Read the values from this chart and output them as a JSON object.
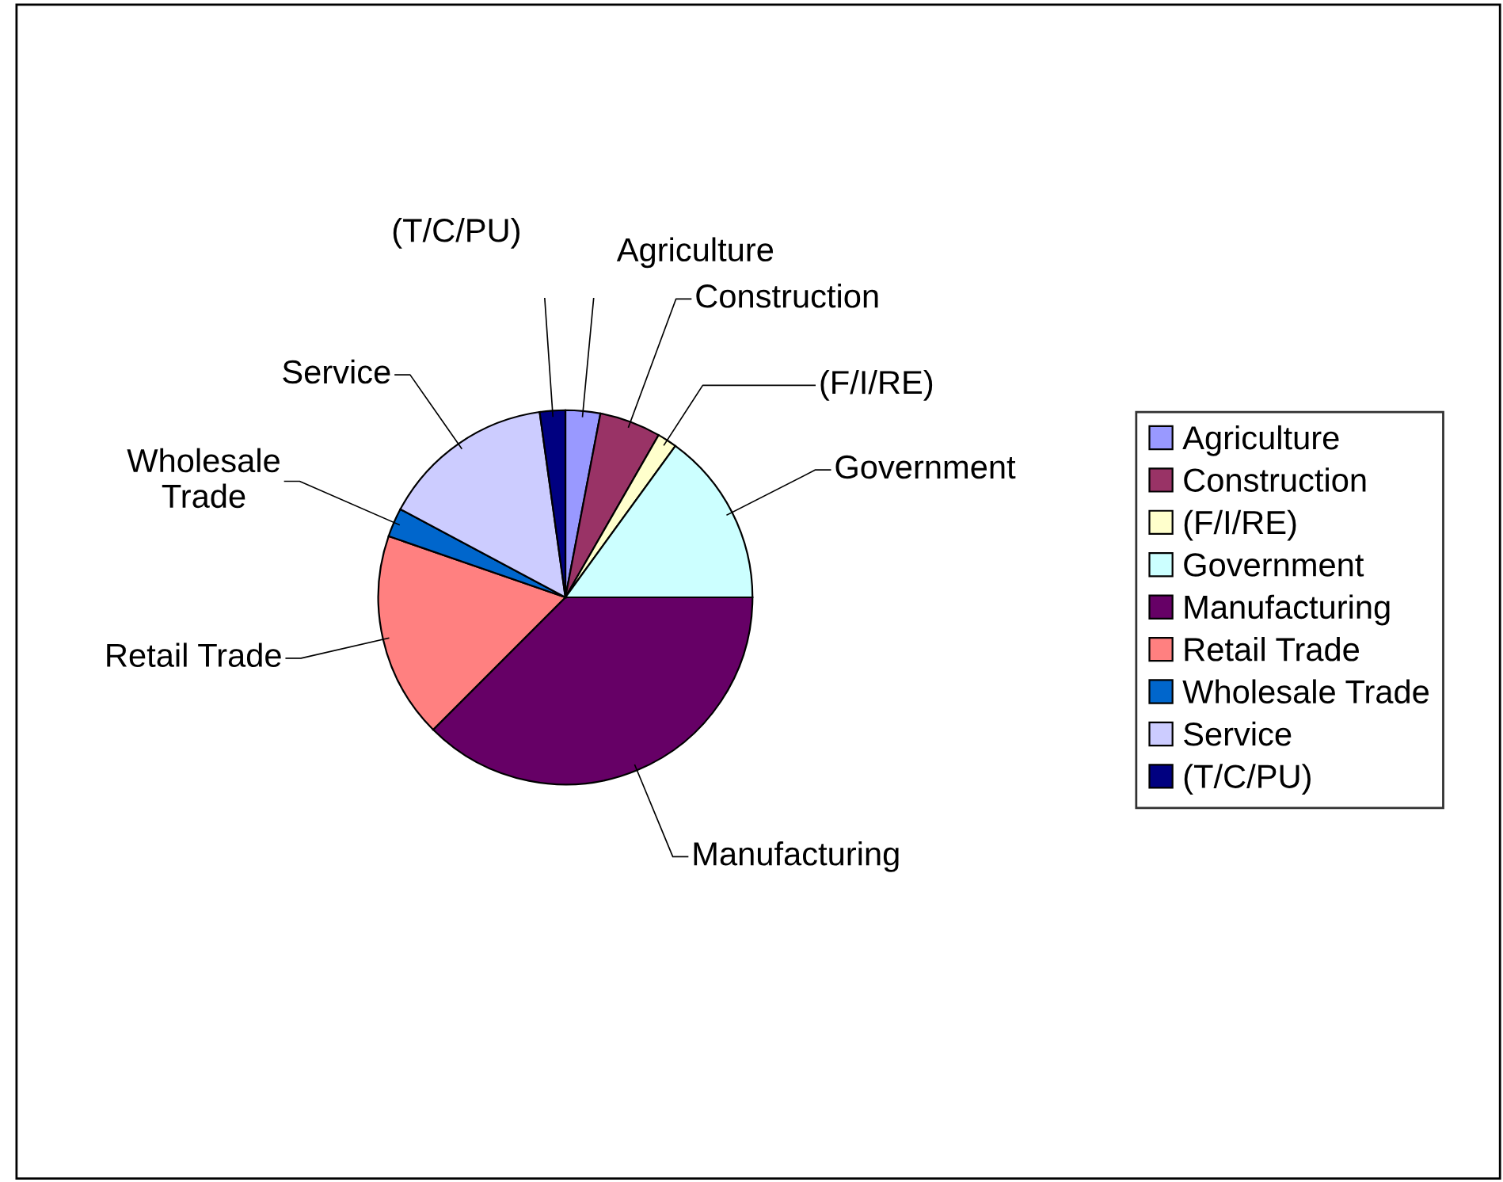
{
  "chart_data": {
    "type": "pie",
    "categories": [
      "Agriculture",
      "Construction",
      "(F/I/RE)",
      "Government",
      "Manufacturing",
      "Retail Trade",
      "Wholesale Trade",
      "Service",
      "(T/C/PU)"
    ],
    "values": [
      3,
      5.3,
      1.7,
      15,
      37.5,
      17.8,
      2.5,
      15,
      2.2
    ],
    "colors": [
      "#9999ff",
      "#993366",
      "#ffffcc",
      "#ccffff",
      "#660066",
      "#ff8080",
      "#0066cc",
      "#ccccff",
      "#000080"
    ],
    "legend": "right"
  }
}
